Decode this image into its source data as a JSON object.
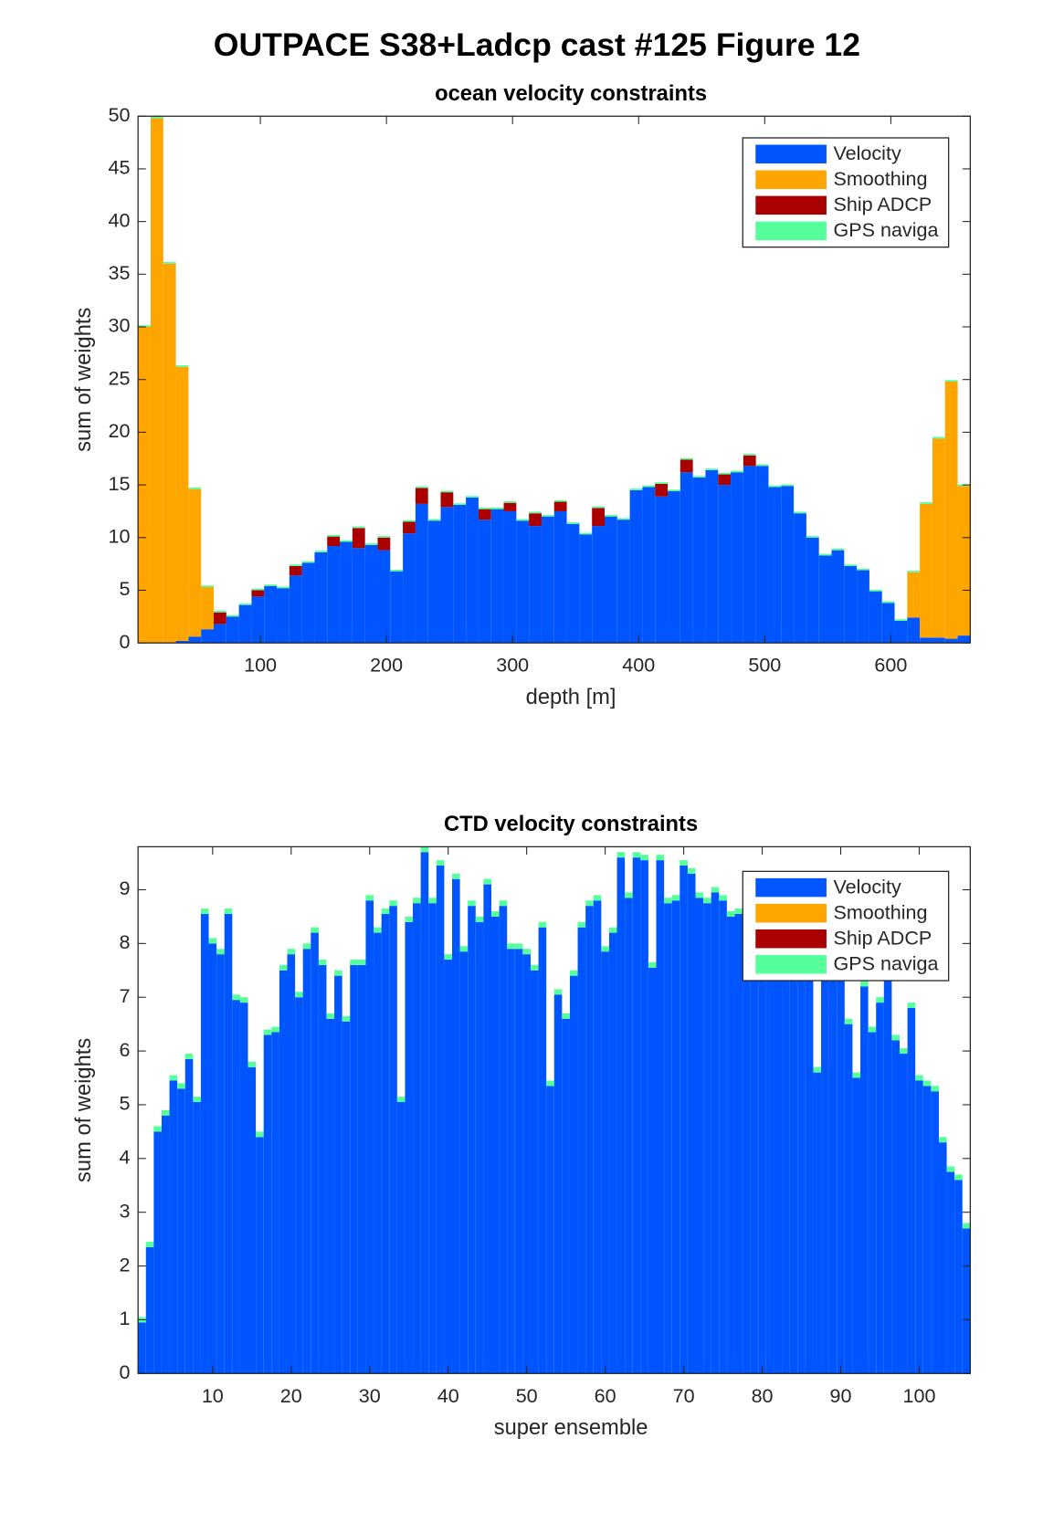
{
  "title": "OUTPACE S38+Ladcp cast #125  Figure 12",
  "chart_data": [
    {
      "type": "stacked_bar",
      "title": "ocean velocity constraints",
      "xlabel": "depth [m]",
      "ylabel": "sum of weights",
      "xlim": [
        3,
        663
      ],
      "ylim": [
        0,
        50
      ],
      "xticks": [
        100,
        200,
        300,
        400,
        500,
        600
      ],
      "yticks": [
        0,
        5,
        10,
        15,
        20,
        25,
        30,
        35,
        40,
        45,
        50
      ],
      "legend": "northeast",
      "x": [
        8,
        18,
        28,
        38,
        48,
        58,
        68,
        78,
        88,
        98,
        108,
        118,
        128,
        138,
        148,
        158,
        168,
        178,
        188,
        198,
        208,
        218,
        228,
        238,
        248,
        258,
        268,
        278,
        288,
        298,
        308,
        318,
        328,
        338,
        348,
        358,
        368,
        378,
        388,
        398,
        408,
        418,
        428,
        438,
        448,
        458,
        468,
        478,
        488,
        498,
        508,
        518,
        528,
        538,
        548,
        558,
        568,
        578,
        588,
        598,
        608,
        618,
        628,
        638,
        648,
        658
      ],
      "series": [
        {
          "name": "Velocity",
          "color": "#0055ff",
          "values": [
            0,
            0,
            0,
            0.2,
            0.6,
            1.3,
            1.8,
            2.5,
            3.6,
            4.4,
            5.4,
            5.2,
            6.4,
            7.6,
            8.6,
            9.2,
            9.6,
            9.0,
            9.3,
            8.8,
            6.8,
            10.4,
            13.2,
            11.6,
            12.9,
            13.1,
            13.8,
            11.7,
            12.7,
            12.5,
            11.6,
            11.1,
            12.0,
            12.5,
            11.3,
            10.3,
            11.1,
            12.0,
            11.7,
            14.5,
            14.8,
            13.9,
            14.4,
            16.2,
            15.7,
            16.4,
            15.0,
            16.2,
            16.8,
            16.8,
            14.8,
            14.9,
            12.3,
            10.0,
            8.3,
            8.8,
            7.3,
            6.9,
            4.9,
            3.8,
            2.1,
            2.4,
            0.5,
            0.5,
            0.4,
            0.7
          ]
        },
        {
          "name": "Smoothing",
          "color": "#ffa500",
          "values": [
            30,
            49.8,
            36,
            26,
            14,
            4,
            0,
            0,
            0,
            0,
            0,
            0,
            0,
            0,
            0,
            0,
            0,
            0,
            0,
            0,
            0,
            0,
            0,
            0,
            0,
            0,
            0,
            0,
            0,
            0,
            0,
            0,
            0,
            0,
            0,
            0,
            0,
            0,
            0,
            0,
            0,
            0,
            0,
            0,
            0,
            0,
            0,
            0,
            0,
            0,
            0,
            0,
            0,
            0,
            0,
            0,
            0,
            0,
            0,
            0,
            0,
            4.3,
            12.7,
            18.9,
            24.4,
            14.2
          ]
        },
        {
          "name": "Ship ADCP",
          "color": "#aa0000",
          "values": [
            0,
            0,
            0,
            0,
            0,
            0,
            1.1,
            0,
            0,
            0.6,
            0,
            0,
            0.9,
            0,
            0,
            0.9,
            0,
            1.9,
            0,
            1.2,
            0,
            1.1,
            1.5,
            0,
            1.4,
            0,
            0,
            1.0,
            0,
            0.8,
            0,
            1.2,
            0,
            0.9,
            0,
            0,
            1.7,
            0,
            0,
            0,
            0,
            1.2,
            0,
            1.2,
            0,
            0,
            1.0,
            0,
            1.0,
            0,
            0,
            0,
            0,
            0,
            0,
            0,
            0,
            0,
            0,
            0,
            0,
            0,
            0,
            0,
            0,
            0
          ]
        },
        {
          "name": "GPS naviga",
          "color": "#55ff99",
          "values": [
            0.15,
            0.15,
            0.15,
            0.15,
            0.15,
            0.15,
            0.15,
            0.15,
            0.15,
            0.15,
            0.15,
            0.15,
            0.15,
            0.15,
            0.15,
            0.15,
            0.15,
            0.15,
            0.15,
            0.15,
            0.15,
            0.15,
            0.15,
            0.15,
            0.15,
            0.15,
            0.15,
            0.15,
            0.15,
            0.15,
            0.15,
            0.15,
            0.15,
            0.15,
            0.15,
            0.15,
            0.15,
            0.15,
            0.15,
            0.15,
            0.15,
            0.15,
            0.15,
            0.15,
            0.15,
            0.15,
            0.15,
            0.15,
            0.15,
            0.15,
            0.15,
            0.15,
            0.15,
            0.15,
            0.15,
            0.15,
            0.15,
            0.15,
            0.15,
            0.15,
            0.15,
            0.15,
            0.15,
            0.15,
            0.15,
            0.15
          ]
        }
      ]
    },
    {
      "type": "stacked_bar",
      "title": "CTD velocity constraints",
      "xlabel": "super ensemble",
      "ylabel": "sum of weights",
      "xlim": [
        0.5,
        106.5
      ],
      "ylim": [
        0,
        9.8
      ],
      "xticks": [
        10,
        20,
        30,
        40,
        50,
        60,
        70,
        80,
        90,
        100
      ],
      "yticks": [
        0,
        1,
        2,
        3,
        4,
        5,
        6,
        7,
        8,
        9
      ],
      "legend": "northeast",
      "x": [
        1,
        2,
        3,
        4,
        5,
        6,
        7,
        8,
        9,
        10,
        11,
        12,
        13,
        14,
        15,
        16,
        17,
        18,
        19,
        20,
        21,
        22,
        23,
        24,
        25,
        26,
        27,
        28,
        29,
        30,
        31,
        32,
        33,
        34,
        35,
        36,
        37,
        38,
        39,
        40,
        41,
        42,
        43,
        44,
        45,
        46,
        47,
        48,
        49,
        50,
        51,
        52,
        53,
        54,
        55,
        56,
        57,
        58,
        59,
        60,
        61,
        62,
        63,
        64,
        65,
        66,
        67,
        68,
        69,
        70,
        71,
        72,
        73,
        74,
        75,
        76,
        77,
        78,
        79,
        80,
        81,
        82,
        83,
        84,
        85,
        86,
        87,
        88,
        89,
        90,
        91,
        92,
        93,
        94,
        95,
        96,
        97,
        98,
        99,
        100,
        101,
        102,
        103,
        104,
        105,
        106
      ],
      "series": [
        {
          "name": "Velocity",
          "color": "#0055ff",
          "values": [
            0.95,
            2.35,
            4.5,
            4.8,
            5.45,
            5.3,
            5.85,
            5.05,
            8.55,
            8.0,
            7.8,
            8.55,
            6.95,
            6.9,
            5.7,
            4.4,
            6.3,
            6.35,
            7.5,
            7.8,
            7.0,
            7.9,
            8.2,
            7.6,
            6.6,
            7.4,
            6.55,
            7.6,
            7.6,
            8.8,
            8.2,
            8.55,
            8.7,
            5.05,
            8.4,
            8.75,
            9.7,
            8.75,
            9.45,
            7.7,
            9.2,
            7.85,
            8.7,
            8.4,
            9.1,
            8.5,
            8.7,
            7.9,
            7.9,
            7.8,
            7.5,
            8.3,
            5.35,
            7.05,
            6.6,
            7.4,
            8.3,
            8.7,
            8.8,
            7.85,
            8.2,
            9.6,
            8.85,
            9.6,
            9.55,
            7.55,
            9.55,
            8.75,
            8.8,
            9.45,
            9.3,
            8.85,
            8.75,
            8.95,
            8.8,
            8.5,
            8.55,
            8.4,
            8.3,
            8.2,
            8.1,
            8.0,
            7.8,
            7.5,
            7.4,
            7.7,
            5.6,
            7.7,
            7.3,
            7.4,
            6.5,
            5.5,
            7.2,
            6.35,
            6.9,
            7.4,
            6.2,
            5.95,
            6.8,
            5.45,
            5.35,
            5.25,
            4.3,
            3.75,
            3.6,
            2.7
          ]
        },
        {
          "name": "Smoothing",
          "color": "#ffa500",
          "values": [
            0,
            0,
            0,
            0,
            0,
            0,
            0,
            0,
            0,
            0,
            0,
            0,
            0,
            0,
            0,
            0,
            0,
            0,
            0,
            0,
            0,
            0,
            0,
            0,
            0,
            0,
            0,
            0,
            0,
            0,
            0,
            0,
            0,
            0,
            0,
            0,
            0,
            0,
            0,
            0,
            0,
            0,
            0,
            0,
            0,
            0,
            0,
            0,
            0,
            0,
            0,
            0,
            0,
            0,
            0,
            0,
            0,
            0,
            0,
            0,
            0,
            0,
            0,
            0,
            0,
            0,
            0,
            0,
            0,
            0,
            0,
            0,
            0,
            0,
            0,
            0,
            0,
            0,
            0,
            0,
            0,
            0,
            0,
            0,
            0,
            0,
            0,
            0,
            0,
            0,
            0,
            0,
            0,
            0,
            0,
            0,
            0,
            0,
            0,
            0,
            0,
            0,
            0,
            0,
            0,
            0
          ]
        },
        {
          "name": "Ship ADCP",
          "color": "#aa0000",
          "values": [
            0,
            0,
            0,
            0,
            0,
            0,
            0,
            0,
            0,
            0,
            0,
            0,
            0,
            0,
            0,
            0,
            0,
            0,
            0,
            0,
            0,
            0,
            0,
            0,
            0,
            0,
            0,
            0,
            0,
            0,
            0,
            0,
            0,
            0,
            0,
            0,
            0,
            0,
            0,
            0,
            0,
            0,
            0,
            0,
            0,
            0,
            0,
            0,
            0,
            0,
            0,
            0,
            0,
            0,
            0,
            0,
            0,
            0,
            0,
            0,
            0,
            0,
            0,
            0,
            0,
            0,
            0,
            0,
            0,
            0,
            0,
            0,
            0,
            0,
            0,
            0,
            0,
            0,
            0,
            0,
            0,
            0,
            0,
            0,
            0,
            0,
            0,
            0,
            0,
            0,
            0,
            0,
            0,
            0,
            0,
            0,
            0,
            0,
            0,
            0,
            0,
            0,
            0,
            0,
            0,
            0
          ]
        },
        {
          "name": "GPS naviga",
          "color": "#55ff99",
          "values": [
            0.1,
            0.1,
            0.1,
            0.1,
            0.1,
            0.1,
            0.1,
            0.1,
            0.1,
            0.1,
            0.1,
            0.1,
            0.1,
            0.1,
            0.1,
            0.1,
            0.1,
            0.1,
            0.1,
            0.1,
            0.1,
            0.1,
            0.1,
            0.1,
            0.1,
            0.1,
            0.1,
            0.1,
            0.1,
            0.1,
            0.1,
            0.1,
            0.1,
            0.1,
            0.1,
            0.1,
            0.1,
            0.1,
            0.1,
            0.1,
            0.1,
            0.1,
            0.1,
            0.1,
            0.1,
            0.1,
            0.1,
            0.1,
            0.1,
            0.1,
            0.1,
            0.1,
            0.1,
            0.1,
            0.1,
            0.1,
            0.1,
            0.1,
            0.1,
            0.1,
            0.1,
            0.1,
            0.1,
            0.1,
            0.1,
            0.1,
            0.1,
            0.1,
            0.1,
            0.1,
            0.1,
            0.1,
            0.1,
            0.1,
            0.1,
            0.1,
            0.1,
            0.1,
            0.1,
            0.1,
            0.1,
            0.1,
            0.1,
            0.1,
            0.1,
            0.1,
            0.1,
            0.1,
            0.1,
            0.1,
            0.1,
            0.1,
            0.1,
            0.1,
            0.1,
            0.1,
            0.1,
            0.1,
            0.1,
            0.1,
            0.1,
            0.1,
            0.1,
            0.1,
            0.1,
            0.1
          ]
        }
      ]
    }
  ]
}
